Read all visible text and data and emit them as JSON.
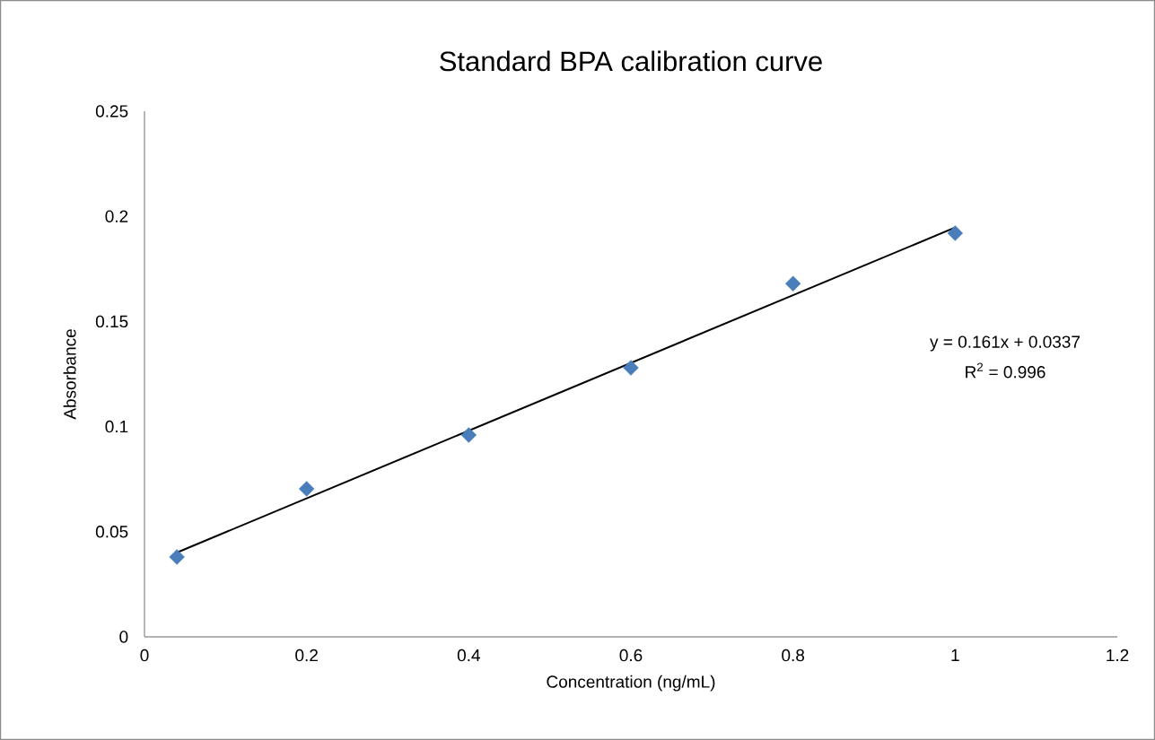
{
  "chart_data": {
    "type": "scatter",
    "title": "Standard BPA calibration curve",
    "xlabel": "Concentration (ng/mL)",
    "ylabel": "Absorbance",
    "xlim": [
      0,
      1.2
    ],
    "xticks": [
      0,
      0.2,
      0.4,
      0.6,
      0.8,
      1,
      1.2
    ],
    "ylim": [
      0,
      0.25
    ],
    "yticks": [
      0,
      0.05,
      0.1,
      0.15,
      0.2,
      0.25
    ],
    "series": [
      {
        "type": "scatter",
        "color": "#4a7ebb",
        "marker": "diamond",
        "x": [
          0.04,
          0.2,
          0.4,
          0.6,
          0.8,
          1.0
        ],
        "values": [
          0.038,
          0.0704,
          0.096,
          0.128,
          0.168,
          0.192
        ]
      },
      {
        "type": "line",
        "color": "#000000",
        "marker": "none",
        "x": [
          0.04,
          1.0
        ],
        "values": [
          0.0401,
          0.1947
        ]
      }
    ],
    "annotations": [
      "y = 0.161x + 0.0337",
      "R$^{2}$ = 0.996"
    ]
  }
}
